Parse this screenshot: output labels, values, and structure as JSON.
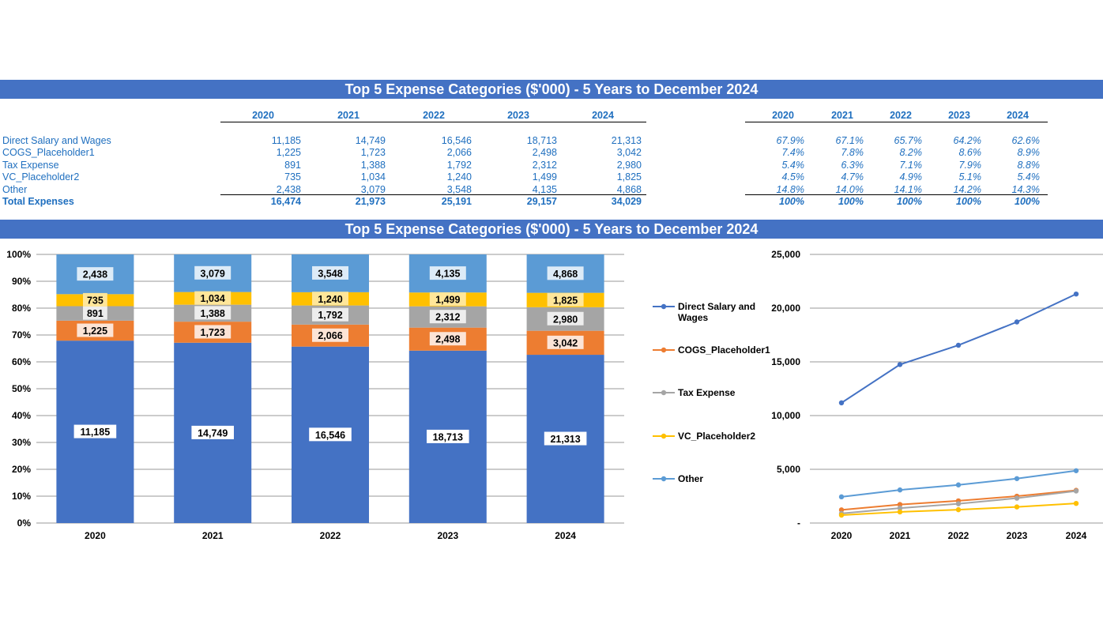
{
  "title_top": "Top 5 Expense Categories ($'000) - 5 Years to December 2024",
  "title_bottom": "Top 5 Expense Categories ($'000) - 5 Years to December 2024",
  "table": {
    "years": [
      "2020",
      "2021",
      "2022",
      "2023",
      "2024"
    ],
    "rows": [
      {
        "label": "Direct Salary and Wages",
        "values": [
          "11,185",
          "14,749",
          "16,546",
          "18,713",
          "21,313"
        ],
        "pct": [
          "67.9%",
          "67.1%",
          "65.7%",
          "64.2%",
          "62.6%"
        ]
      },
      {
        "label": "COGS_Placeholder1",
        "values": [
          "1,225",
          "1,723",
          "2,066",
          "2,498",
          "3,042"
        ],
        "pct": [
          "7.4%",
          "7.8%",
          "8.2%",
          "8.6%",
          "8.9%"
        ]
      },
      {
        "label": "Tax Expense",
        "values": [
          "891",
          "1,388",
          "1,792",
          "2,312",
          "2,980"
        ],
        "pct": [
          "5.4%",
          "6.3%",
          "7.1%",
          "7.9%",
          "8.8%"
        ]
      },
      {
        "label": "VC_Placeholder2",
        "values": [
          "735",
          "1,034",
          "1,240",
          "1,499",
          "1,825"
        ],
        "pct": [
          "4.5%",
          "4.7%",
          "4.9%",
          "5.1%",
          "5.4%"
        ]
      },
      {
        "label": "Other",
        "values": [
          "2,438",
          "3,079",
          "3,548",
          "4,135",
          "4,868"
        ],
        "pct": [
          "14.8%",
          "14.0%",
          "14.1%",
          "14.2%",
          "14.3%"
        ]
      }
    ],
    "total": {
      "label": "Total Expenses",
      "values": [
        "16,474",
        "21,973",
        "25,191",
        "29,157",
        "34,029"
      ],
      "pct": [
        "100%",
        "100%",
        "100%",
        "100%",
        "100%"
      ]
    }
  },
  "chart_data": [
    {
      "type": "bar",
      "stacked": "percent",
      "categories": [
        "2020",
        "2021",
        "2022",
        "2023",
        "2024"
      ],
      "series": [
        {
          "name": "Direct Salary and Wages",
          "color": "#4472c4",
          "values": [
            11185,
            14749,
            16546,
            18713,
            21313
          ],
          "labels": [
            "11,185",
            "14,749",
            "16,546",
            "18,713",
            "21,313"
          ]
        },
        {
          "name": "COGS_Placeholder1",
          "color": "#ed7d31",
          "values": [
            1225,
            1723,
            2066,
            2498,
            3042
          ],
          "labels": [
            "1,225",
            "1,723",
            "2,066",
            "2,498",
            "3,042"
          ]
        },
        {
          "name": "Tax Expense",
          "color": "#a5a5a5",
          "values": [
            891,
            1388,
            1792,
            2312,
            2980
          ],
          "labels": [
            "891",
            "1,388",
            "1,792",
            "2,312",
            "2,980"
          ]
        },
        {
          "name": "VC_Placeholder2",
          "color": "#ffc000",
          "values": [
            735,
            1034,
            1240,
            1499,
            1825
          ],
          "labels": [
            "735",
            "1,034",
            "1,240",
            "1,499",
            "1,825"
          ]
        },
        {
          "name": "Other",
          "color": "#5b9bd5",
          "values": [
            2438,
            3079,
            3548,
            4135,
            4868
          ],
          "labels": [
            "2,438",
            "3,079",
            "3,548",
            "4,135",
            "4,868"
          ]
        }
      ],
      "yticks": [
        "0%",
        "10%",
        "20%",
        "30%",
        "40%",
        "50%",
        "60%",
        "70%",
        "80%",
        "90%",
        "100%"
      ],
      "ylim": [
        0,
        1
      ],
      "grid": true
    },
    {
      "type": "line",
      "categories": [
        "2020",
        "2021",
        "2022",
        "2023",
        "2024"
      ],
      "series": [
        {
          "name": "Direct Salary and Wages",
          "color": "#4472c4",
          "values": [
            11185,
            14749,
            16546,
            18713,
            21313
          ]
        },
        {
          "name": "COGS_Placeholder1",
          "color": "#ed7d31",
          "values": [
            1225,
            1723,
            2066,
            2498,
            3042
          ]
        },
        {
          "name": "Tax Expense",
          "color": "#a5a5a5",
          "values": [
            891,
            1388,
            1792,
            2312,
            2980
          ]
        },
        {
          "name": "VC_Placeholder2",
          "color": "#ffc000",
          "values": [
            735,
            1034,
            1240,
            1499,
            1825
          ]
        },
        {
          "name": "Other",
          "color": "#5b9bd5",
          "values": [
            2438,
            3079,
            3548,
            4135,
            4868
          ]
        }
      ],
      "yticks": [
        "-",
        "5,000",
        "10,000",
        "15,000",
        "20,000",
        "25,000"
      ],
      "ylim": [
        0,
        25000
      ],
      "grid": true,
      "legend": "left",
      "legend_labels": [
        [
          "Direct Salary and",
          "Wages"
        ],
        [
          "COGS_Placeholder1"
        ],
        [
          "Tax Expense"
        ],
        [
          "VC_Placeholder2"
        ],
        [
          "Other"
        ]
      ]
    }
  ]
}
